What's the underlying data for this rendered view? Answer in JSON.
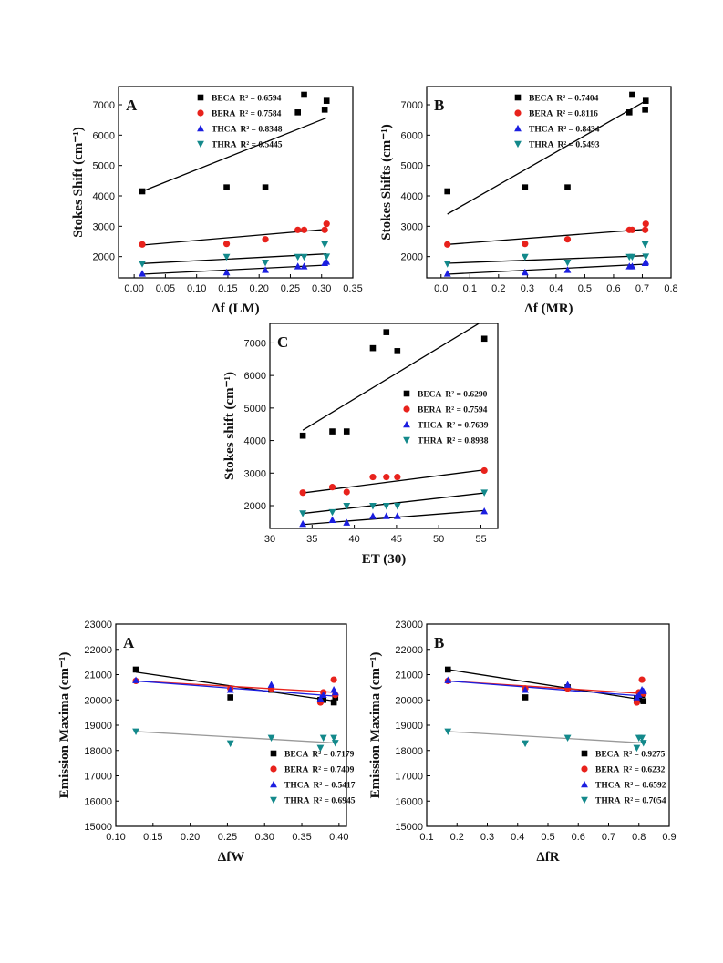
{
  "figure": {
    "charts": [
      {
        "panel": "A",
        "xlabel": "Δf (LM)",
        "ylabel": "Stokes Shift (cm⁻¹)",
        "xlim": [
          -0.025,
          0.35
        ],
        "ylim": [
          1300,
          7600
        ],
        "xticks": [
          "0.00",
          "0.05",
          "0.10",
          "0.15",
          "0.20",
          "0.25",
          "0.30",
          "0.35"
        ],
        "xtick_values": [
          0,
          0.05,
          0.1,
          0.15,
          0.2,
          0.25,
          0.3,
          0.35
        ],
        "yticks": [
          "2000",
          "3000",
          "4000",
          "5000",
          "6000",
          "7000"
        ],
        "ytick_values": [
          2000,
          3000,
          4000,
          5000,
          6000,
          7000
        ],
        "legend": [
          {
            "name": "BECA",
            "r2": "R² = 0.6594"
          },
          {
            "name": "BERA",
            "r2": "R² = 0.7584"
          },
          {
            "name": "THCA",
            "r2": "R² = 0.8348"
          },
          {
            "name": "THRA",
            "r2": "R² = 0.5445"
          }
        ]
      },
      {
        "panel": "B",
        "xlabel": "Δf (MR)",
        "ylabel": "Stokes Shifts (cm⁻¹)",
        "xlim": [
          -0.05,
          0.8
        ],
        "ylim": [
          1300,
          7600
        ],
        "xticks": [
          "0.0",
          "0.1",
          "0.2",
          "0.3",
          "0.4",
          "0.5",
          "0.6",
          "0.7",
          "0.8"
        ],
        "xtick_values": [
          0,
          0.1,
          0.2,
          0.3,
          0.4,
          0.5,
          0.6,
          0.7,
          0.8
        ],
        "yticks": [
          "2000",
          "3000",
          "4000",
          "5000",
          "6000",
          "7000"
        ],
        "ytick_values": [
          2000,
          3000,
          4000,
          5000,
          6000,
          7000
        ],
        "legend": [
          {
            "name": "BECA",
            "r2": "R² = 0.7404"
          },
          {
            "name": "BERA",
            "r2": "R² = 0.8116"
          },
          {
            "name": "THCA",
            "r2": "R² = 0.8434"
          },
          {
            "name": "THRA",
            "r2": "R² = 0.5493"
          }
        ]
      },
      {
        "panel": "C",
        "xlabel": "ET (30)",
        "ylabel": "Stokes shift (cm⁻¹)",
        "xlim": [
          30,
          57
        ],
        "ylim": [
          1300,
          7600
        ],
        "xticks": [
          "30",
          "35",
          "40",
          "45",
          "50",
          "55"
        ],
        "xtick_values": [
          30,
          35,
          40,
          45,
          50,
          55
        ],
        "yticks": [
          "2000",
          "3000",
          "4000",
          "5000",
          "6000",
          "7000"
        ],
        "ytick_values": [
          2000,
          3000,
          4000,
          5000,
          6000,
          7000
        ],
        "legend": [
          {
            "name": "BECA",
            "r2": "R² = 0.6290"
          },
          {
            "name": "BERA",
            "r2": "R² = 0.7594"
          },
          {
            "name": "THCA",
            "r2": "R² = 0.7639"
          },
          {
            "name": "THRA",
            "r2": "R² = 0.8938"
          }
        ]
      },
      {
        "panel": "A",
        "xlabel": "ΔfW",
        "ylabel": "Emission Maxima (cm⁻¹)",
        "xlim": [
          0.1,
          0.41
        ],
        "ylim": [
          15000,
          23000
        ],
        "xticks": [
          "0.10",
          "0.15",
          "0.20",
          "0.25",
          "0.30",
          "0.35",
          "0.40"
        ],
        "xtick_values": [
          0.1,
          0.15,
          0.2,
          0.25,
          0.3,
          0.35,
          0.4
        ],
        "yticks": [
          "15000",
          "16000",
          "17000",
          "18000",
          "19000",
          "20000",
          "21000",
          "22000",
          "23000"
        ],
        "ytick_values": [
          15000,
          16000,
          17000,
          18000,
          19000,
          20000,
          21000,
          22000,
          23000
        ],
        "legend": [
          {
            "name": "BECA",
            "r2": "R² = 0.7179"
          },
          {
            "name": "BERA",
            "r2": "R² = 0.7409"
          },
          {
            "name": "THCA",
            "r2": "R² = 0.5417"
          },
          {
            "name": "THRA",
            "r2": "R² = 0.6945"
          }
        ]
      },
      {
        "panel": "B",
        "xlabel": "ΔfR",
        "ylabel": "Emission Maxima (cm⁻¹)",
        "xlim": [
          0.1,
          0.9
        ],
        "ylim": [
          15000,
          23000
        ],
        "xticks": [
          "0.1",
          "0.2",
          "0.3",
          "0.4",
          "0.5",
          "0.6",
          "0.7",
          "0.8",
          "0.9"
        ],
        "xtick_values": [
          0.1,
          0.2,
          0.3,
          0.4,
          0.5,
          0.6,
          0.7,
          0.8,
          0.9
        ],
        "yticks": [
          "15000",
          "16000",
          "17000",
          "18000",
          "19000",
          "20000",
          "21000",
          "22000",
          "23000"
        ],
        "ytick_values": [
          15000,
          16000,
          17000,
          18000,
          19000,
          20000,
          21000,
          22000,
          23000
        ],
        "legend": [
          {
            "name": "BECA",
            "r2": "R² = 0.9275"
          },
          {
            "name": "BERA",
            "r2": "R² = 0.6232"
          },
          {
            "name": "THCA",
            "r2": "R² = 0.6592"
          },
          {
            "name": "THRA",
            "r2": "R² = 0.7054"
          }
        ]
      }
    ]
  },
  "series_style": {
    "BECA": {
      "color": "#000000",
      "marker": "square"
    },
    "BERA": {
      "color": "#e8221c",
      "marker": "circle"
    },
    "THCA": {
      "color": "#1b1ee0",
      "marker": "triangle-up"
    },
    "THRA": {
      "color": "#13898b",
      "marker": "triangle-down"
    }
  },
  "chart_data": [
    {
      "type": "scatter",
      "title": "A",
      "xlabel": "Δf (LM)",
      "ylabel": "Stokes Shift (cm-1)",
      "xlim": [
        -0.025,
        0.35
      ],
      "ylim": [
        1300,
        7600
      ],
      "legend_position": "top-left",
      "series": [
        {
          "name": "BECA R2 = 0.6594",
          "x": [
            0.013,
            0.148,
            0.21,
            0.262,
            0.272,
            0.305,
            0.308
          ],
          "y": [
            4150,
            4280,
            4280,
            6750,
            7330,
            6840,
            7130
          ],
          "fit": [
            [
              0.013,
              4150
            ],
            [
              0.308,
              6570
            ]
          ]
        },
        {
          "name": "BERA R2 = 0.7584",
          "x": [
            0.013,
            0.148,
            0.21,
            0.262,
            0.272,
            0.305,
            0.308
          ],
          "y": [
            2400,
            2420,
            2570,
            2880,
            2880,
            2880,
            3080
          ],
          "fit": [
            [
              0.013,
              2380
            ],
            [
              0.308,
              2900
            ]
          ]
        },
        {
          "name": "THCA R2 = 0.8348",
          "x": [
            0.013,
            0.148,
            0.21,
            0.262,
            0.272,
            0.305,
            0.308
          ],
          "y": [
            1440,
            1480,
            1560,
            1680,
            1680,
            1790,
            1830
          ],
          "fit": [
            [
              0.013,
              1420
            ],
            [
              0.308,
              1720
            ]
          ]
        },
        {
          "name": "THRA R2 = 0.5445",
          "x": [
            0.013,
            0.148,
            0.21,
            0.262,
            0.272,
            0.305,
            0.308
          ],
          "y": [
            1760,
            1990,
            1800,
            1990,
            1990,
            2400,
            2000
          ],
          "fit": [
            [
              0.013,
              1770
            ],
            [
              0.308,
              2090
            ]
          ]
        }
      ]
    },
    {
      "type": "scatter",
      "title": "B",
      "xlabel": "Δf (MR)",
      "ylabel": "Stokes Shifts (cm-1)",
      "xlim": [
        -0.05,
        0.8
      ],
      "ylim": [
        1300,
        7600
      ],
      "legend_position": "top-left",
      "series": [
        {
          "name": "BECA R2 = 0.7404",
          "x": [
            0.022,
            0.292,
            0.44,
            0.655,
            0.665,
            0.71,
            0.712
          ],
          "y": [
            4150,
            4280,
            4280,
            6750,
            7330,
            6840,
            7130
          ],
          "fit": [
            [
              0.022,
              3400
            ],
            [
              0.712,
              7130
            ]
          ]
        },
        {
          "name": "BERA R2 = 0.8116",
          "x": [
            0.022,
            0.292,
            0.44,
            0.655,
            0.665,
            0.71,
            0.712
          ],
          "y": [
            2400,
            2420,
            2570,
            2880,
            2880,
            2880,
            3080
          ],
          "fit": [
            [
              0.022,
              2400
            ],
            [
              0.712,
              2900
            ]
          ]
        },
        {
          "name": "THCA R2 = 0.8434",
          "x": [
            0.022,
            0.292,
            0.44,
            0.655,
            0.665,
            0.71,
            0.712
          ],
          "y": [
            1440,
            1480,
            1560,
            1680,
            1680,
            1790,
            1830
          ],
          "fit": [
            [
              0.022,
              1420
            ],
            [
              0.712,
              1750
            ]
          ]
        },
        {
          "name": "THRA R2 = 0.5493",
          "x": [
            0.022,
            0.292,
            0.44,
            0.655,
            0.665,
            0.71,
            0.712
          ],
          "y": [
            1760,
            1990,
            1800,
            1990,
            1990,
            2400,
            2000
          ],
          "fit": [
            [
              0.022,
              1780
            ],
            [
              0.712,
              2030
            ]
          ]
        }
      ]
    },
    {
      "type": "scatter",
      "title": "C",
      "xlabel": "ET (30)",
      "ylabel": "Stokes shift (cm-1)",
      "xlim": [
        30,
        57
      ],
      "ylim": [
        1300,
        7600
      ],
      "legend_position": "right",
      "series": [
        {
          "name": "BECA R2 = 0.6290",
          "x": [
            33.9,
            37.4,
            39.1,
            42.2,
            43.8,
            45.1,
            55.4
          ],
          "y": [
            4150,
            4280,
            4280,
            6840,
            7330,
            6750,
            7130
          ],
          "fit": [
            [
              33.9,
              4320
            ],
            [
              55.4,
              7700
            ]
          ]
        },
        {
          "name": "BERA R2 = 0.7594",
          "x": [
            33.9,
            37.4,
            39.1,
            42.2,
            43.8,
            45.1,
            55.4
          ],
          "y": [
            2400,
            2570,
            2420,
            2880,
            2880,
            2880,
            3080
          ],
          "fit": [
            [
              33.9,
              2390
            ],
            [
              55.4,
              3100
            ]
          ]
        },
        {
          "name": "THCA R2 = 0.7639",
          "x": [
            33.9,
            37.4,
            39.1,
            42.2,
            43.8,
            45.1,
            55.4
          ],
          "y": [
            1440,
            1560,
            1480,
            1680,
            1680,
            1680,
            1830
          ],
          "fit": [
            [
              33.9,
              1420
            ],
            [
              55.4,
              1850
            ]
          ]
        },
        {
          "name": "THRA R2 = 0.8938",
          "x": [
            33.9,
            37.4,
            39.1,
            42.2,
            43.8,
            45.1,
            55.4
          ],
          "y": [
            1760,
            1800,
            1990,
            1990,
            1990,
            1990,
            2400
          ],
          "fit": [
            [
              33.9,
              1760
            ],
            [
              55.4,
              2390
            ]
          ]
        }
      ]
    },
    {
      "type": "scatter",
      "title": "A",
      "xlabel": "ΔfW",
      "ylabel": "Emission Maxima (cm-1)",
      "xlim": [
        0.1,
        0.41
      ],
      "ylim": [
        15000,
        23000
      ],
      "legend_position": "bottom-right",
      "series": [
        {
          "name": "BECA R2 = 0.7179",
          "x": [
            0.127,
            0.254,
            0.309,
            0.375,
            0.379,
            0.393,
            0.395
          ],
          "y": [
            21200,
            20100,
            20400,
            20000,
            20000,
            19900,
            20100
          ],
          "fit": [
            [
              0.127,
              21100
            ],
            [
              0.395,
              19950
            ]
          ]
        },
        {
          "name": "BERA R2 = 0.7409",
          "x": [
            0.127,
            0.254,
            0.309,
            0.375,
            0.379,
            0.393,
            0.395
          ],
          "y": [
            20750,
            20450,
            20450,
            19900,
            20300,
            20800,
            20200
          ],
          "fit": [
            [
              0.127,
              20750
            ],
            [
              0.395,
              20300
            ]
          ]
        },
        {
          "name": "THCA R2 = 0.5417",
          "x": [
            0.127,
            0.254,
            0.309,
            0.375,
            0.379,
            0.393,
            0.395
          ],
          "y": [
            20780,
            20400,
            20600,
            20050,
            20200,
            20400,
            20300
          ],
          "fit": [
            [
              0.127,
              20750
            ],
            [
              0.395,
              20150
            ]
          ]
        },
        {
          "name": "THRA R2 = 0.6945",
          "x": [
            0.127,
            0.254,
            0.309,
            0.375,
            0.379,
            0.393,
            0.395
          ],
          "y": [
            18750,
            18280,
            18500,
            18100,
            18500,
            18500,
            18300
          ],
          "fit": [
            [
              0.127,
              18750
            ],
            [
              0.395,
              18300
            ]
          ]
        }
      ]
    },
    {
      "type": "scatter",
      "title": "B",
      "xlabel": "ΔfR",
      "ylabel": "Emission Maxima (cm-1)",
      "xlim": [
        0.1,
        0.9
      ],
      "ylim": [
        15000,
        23000
      ],
      "legend_position": "bottom-right",
      "series": [
        {
          "name": "BECA R2 = 0.9275",
          "x": [
            0.17,
            0.425,
            0.565,
            0.793,
            0.8,
            0.81,
            0.815
          ],
          "y": [
            21200,
            20100,
            20500,
            20050,
            20000,
            20200,
            19950
          ],
          "fit": [
            [
              0.17,
              21200
            ],
            [
              0.815,
              20000
            ]
          ]
        },
        {
          "name": "BERA R2 = 0.6232",
          "x": [
            0.17,
            0.425,
            0.565,
            0.793,
            0.8,
            0.81,
            0.815
          ],
          "y": [
            20750,
            20450,
            20450,
            19900,
            20300,
            20800,
            20250
          ],
          "fit": [
            [
              0.17,
              20750
            ],
            [
              0.815,
              20250
            ]
          ]
        },
        {
          "name": "THCA R2 = 0.6592",
          "x": [
            0.17,
            0.425,
            0.565,
            0.793,
            0.8,
            0.81,
            0.815
          ],
          "y": [
            20780,
            20400,
            20600,
            20100,
            20200,
            20400,
            20350
          ],
          "fit": [
            [
              0.17,
              20750
            ],
            [
              0.815,
              20150
            ]
          ]
        },
        {
          "name": "THRA R2 = 0.7054",
          "x": [
            0.17,
            0.425,
            0.565,
            0.793,
            0.8,
            0.81,
            0.815
          ],
          "y": [
            18750,
            18280,
            18500,
            18100,
            18500,
            18500,
            18300
          ],
          "fit": [
            [
              0.17,
              18750
            ],
            [
              0.815,
              18300
            ]
          ]
        }
      ]
    }
  ]
}
